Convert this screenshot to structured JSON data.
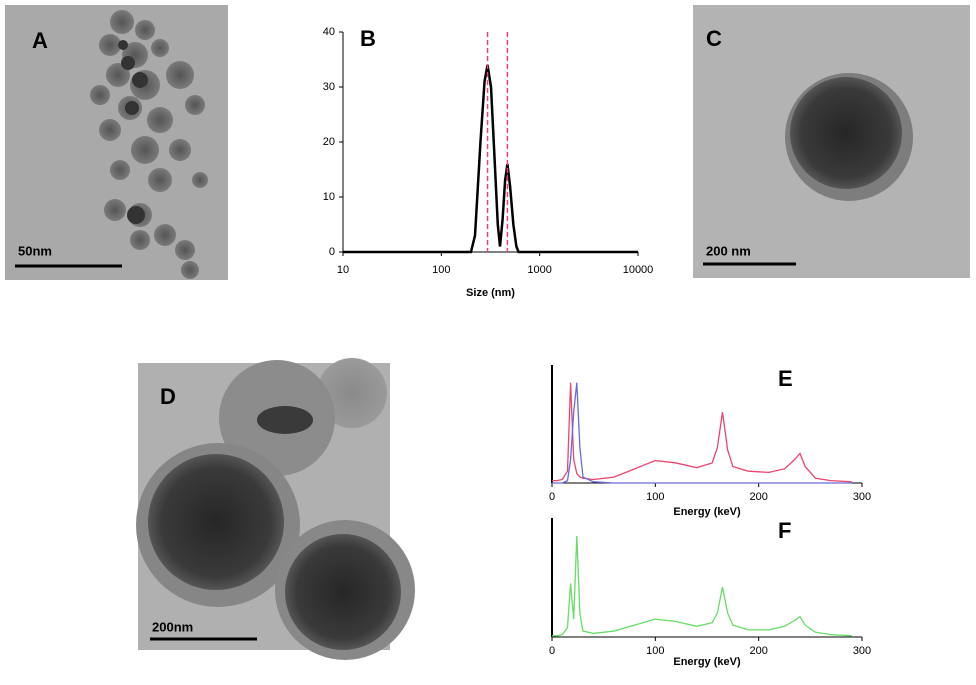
{
  "panels": [
    {
      "label": "A",
      "scale_bar": "50nm"
    },
    {
      "label": "C",
      "scale_bar": "200 nm"
    },
    {
      "label": "D",
      "scale_bar": "200nm"
    }
  ],
  "chart_data": [
    {
      "type": "line",
      "label": "B",
      "xlabel": "Size (nm)",
      "log_x": true,
      "xlim": [
        10,
        10000
      ],
      "xticks": [
        10,
        100,
        1000,
        10000
      ],
      "ylim": [
        0,
        40
      ],
      "yticks": [
        0,
        10,
        20,
        30,
        40
      ],
      "x": [
        10,
        200,
        220,
        250,
        275,
        295,
        320,
        350,
        375,
        395,
        420,
        445,
        470,
        500,
        540,
        580,
        610,
        1000,
        10000
      ],
      "series": [
        {
          "color": "#000000",
          "values": [
            0,
            0,
            3,
            20,
            31,
            34,
            30,
            16,
            5,
            1,
            6,
            13,
            16,
            12,
            5,
            1,
            0,
            0,
            0
          ]
        }
      ],
      "reference_lines": {
        "x": [
          295,
          470
        ],
        "color": "#e8466e"
      }
    },
    {
      "type": "line",
      "label": "E",
      "xlabel": "Energy (keV)",
      "xlim": [
        0,
        300
      ],
      "xticks": [
        0,
        100,
        200,
        300
      ],
      "ylim": [
        0,
        100
      ],
      "x": [
        0,
        5,
        10,
        15,
        18,
        21,
        24,
        27,
        30,
        40,
        60,
        80,
        100,
        120,
        140,
        155,
        160,
        165,
        170,
        175,
        190,
        210,
        225,
        235,
        240,
        245,
        255,
        270,
        290
      ],
      "series": [
        {
          "color": "#e8466e",
          "values": [
            2,
            2,
            3,
            10,
            85,
            20,
            8,
            5,
            4,
            3,
            5,
            12,
            19,
            17,
            13,
            17,
            30,
            60,
            28,
            14,
            10,
            9,
            12,
            20,
            25,
            14,
            4,
            2,
            1
          ]
        },
        {
          "color": "#6a6ad8",
          "values": [
            0,
            0,
            0,
            2,
            20,
            60,
            85,
            30,
            5,
            1,
            0,
            0,
            0,
            0,
            0,
            0,
            0,
            0,
            0,
            0,
            0,
            0,
            0,
            0,
            0,
            0,
            0,
            0,
            0
          ]
        }
      ]
    },
    {
      "type": "line",
      "label": "F",
      "xlabel": "Energy (keV)",
      "xlim": [
        0,
        300
      ],
      "xticks": [
        0,
        100,
        200,
        300
      ],
      "ylim": [
        0,
        100
      ],
      "x": [
        0,
        5,
        10,
        15,
        18,
        21,
        24,
        27,
        30,
        40,
        60,
        80,
        100,
        120,
        140,
        155,
        160,
        165,
        170,
        175,
        190,
        210,
        225,
        235,
        240,
        245,
        255,
        270,
        290
      ],
      "series": [
        {
          "color": "#66dd66",
          "values": [
            1,
            1,
            2,
            8,
            45,
            15,
            85,
            20,
            5,
            3,
            5,
            10,
            15,
            13,
            9,
            12,
            20,
            42,
            20,
            10,
            6,
            6,
            9,
            14,
            17,
            10,
            4,
            2,
            1
          ]
        }
      ]
    }
  ]
}
